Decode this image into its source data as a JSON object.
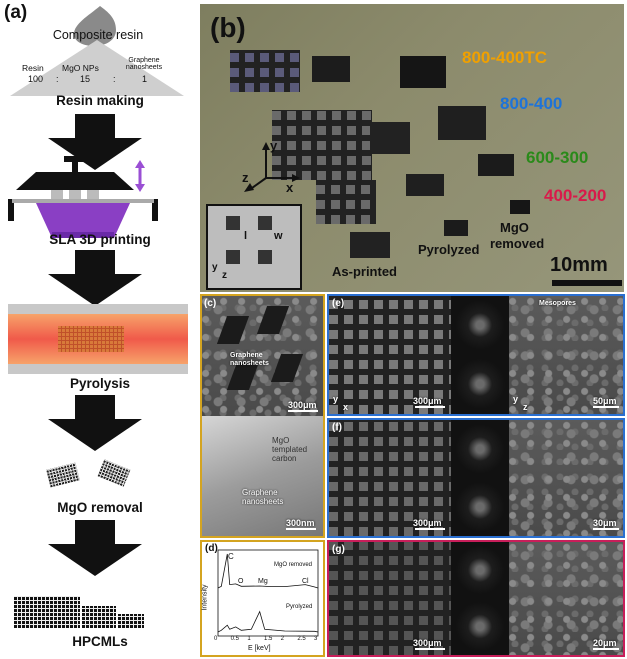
{
  "panel_a": {
    "letter": "(a)",
    "resin_title": "Composite resin",
    "ratio_headers": [
      "Resin",
      "MgO NPs",
      "Graphene nanosheets"
    ],
    "ratio_values": [
      "100",
      "15",
      "1"
    ],
    "ratio_sep": ":",
    "steps": [
      "Resin making",
      "SLA 3D printing",
      "Pyrolysis",
      "MgO removal",
      "HPCMLs"
    ]
  },
  "panel_b": {
    "letter": "(b)",
    "labels": [
      {
        "text": "800-400TC",
        "color": "#f0a000"
      },
      {
        "text": "800-400",
        "color": "#1e73d8"
      },
      {
        "text": "600-300",
        "color": "#2a8a1a"
      },
      {
        "text": "400-200",
        "color": "#d81a4a"
      }
    ],
    "bottom_labels": {
      "printed": "As-printed",
      "pyrolyzed": "Pyrolyzed",
      "removed_1": "MgO",
      "removed_2": "removed"
    },
    "axes": {
      "y": "y",
      "z": "z",
      "x": "x"
    },
    "inset": {
      "w": "w",
      "l": "l",
      "y": "y",
      "z": "z"
    },
    "scale": "10mm"
  },
  "panel_c": {
    "letter": "(c)",
    "scale_top": "300μm",
    "scale_bot": "300nm",
    "ann_top": "Graphene nanosheets",
    "ann_mgo": "MgO templated carbon",
    "ann_graphene": "Graphene nanosheets"
  },
  "panel_d": {
    "letter": "(d)",
    "ylabel": "Intensity",
    "xlabel": "E [keV]",
    "ticks": [
      "0",
      "0.5",
      "1",
      "1.5",
      "2",
      "2.5",
      "3"
    ],
    "series_top": "MgO removed",
    "series_bot": "Pyrolyzed",
    "peaks": [
      "C",
      "O",
      "Mg",
      "Cl"
    ]
  },
  "panel_e": {
    "letter": "(e)",
    "scale_1": "300μm",
    "scale_2": "50μm",
    "axis_y": "y",
    "axis_x": "x",
    "axis_z": "z",
    "ann": "Mesopores"
  },
  "panel_f": {
    "letter": "(f)",
    "scale_1": "300μm",
    "scale_2": "30μm"
  },
  "panel_g": {
    "letter": "(g)",
    "scale_1": "300μm",
    "scale_2": "20μm"
  },
  "chart_data": {
    "type": "line",
    "title": "",
    "xlabel": "E [keV]",
    "ylabel": "Intensity",
    "xlim": [
      0,
      3
    ],
    "series": [
      {
        "name": "MgO removed",
        "x": [
          0.1,
          0.28,
          0.35,
          0.53,
          0.7,
          1.25,
          1.6,
          2.0,
          2.62,
          2.9
        ],
        "y": [
          0.05,
          1.0,
          0.1,
          0.12,
          0.05,
          0.06,
          0.04,
          0.04,
          0.1,
          0.03
        ]
      },
      {
        "name": "Pyrolyzed",
        "x": [
          0.1,
          0.28,
          0.35,
          0.53,
          0.7,
          1.0,
          1.25,
          1.4,
          2.0,
          2.9
        ],
        "y": [
          0.05,
          0.2,
          0.08,
          0.15,
          0.05,
          0.08,
          0.6,
          0.08,
          0.03,
          0.02
        ]
      }
    ]
  }
}
